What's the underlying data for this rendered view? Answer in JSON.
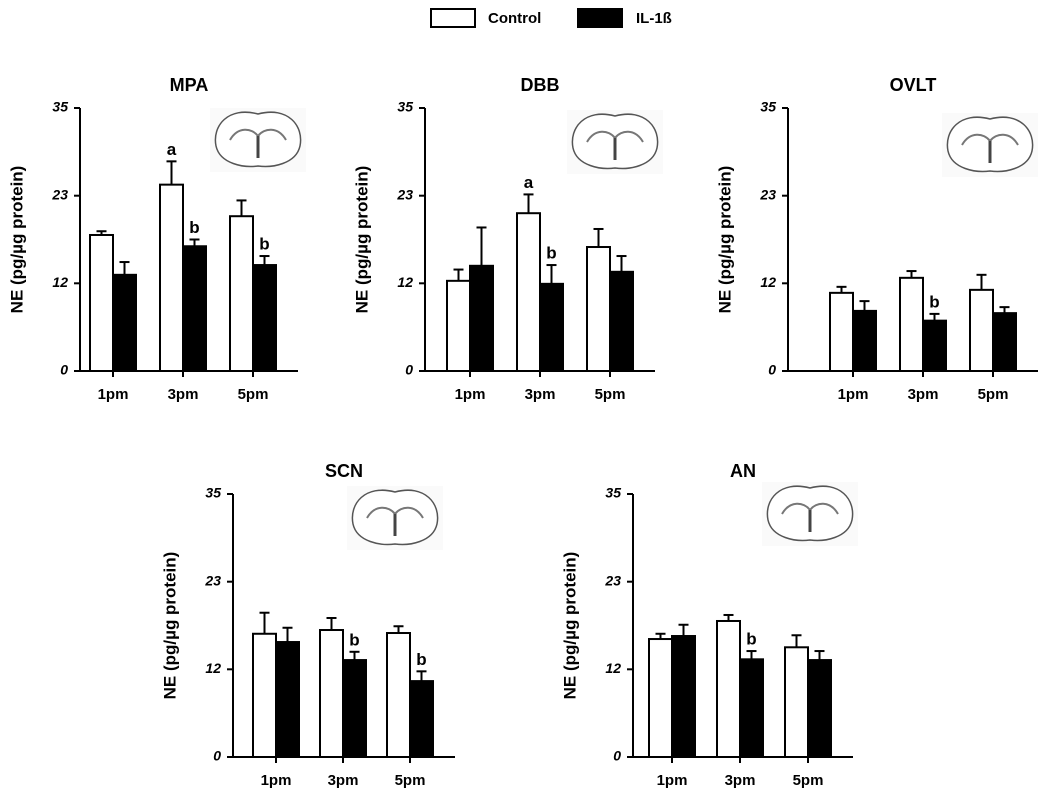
{
  "chart_data": [
    {
      "type": "bar",
      "title": "MPA",
      "ylabel": "NE (pg/µg protein)",
      "categories": [
        "1pm",
        "3pm",
        "5pm"
      ],
      "series": [
        {
          "name": "Control",
          "color": "#ffffff",
          "values": [
            18.1,
            24.8,
            20.6
          ],
          "errors": [
            0.5,
            3.1,
            2.1
          ],
          "annotations": [
            null,
            "a",
            null
          ]
        },
        {
          "name": "IL-1ß",
          "color": "#000000",
          "values": [
            12.8,
            16.6,
            14.1
          ],
          "errors": [
            1.7,
            0.9,
            1.2
          ],
          "annotations": [
            null,
            "b",
            "b"
          ]
        }
      ],
      "ylim": [
        0,
        35
      ],
      "yticks": [
        0,
        {
          "value": 11.67,
          "label": "12"
        },
        {
          "value": 23.33,
          "label": "23"
        },
        35
      ]
    },
    {
      "type": "bar",
      "title": "DBB",
      "ylabel": "NE (pg/µg protein)",
      "categories": [
        "1pm",
        "3pm",
        "5pm"
      ],
      "series": [
        {
          "color": "#ffffff",
          "values": [
            12.0,
            21.0,
            16.5
          ],
          "errors": [
            1.5,
            2.5,
            2.4
          ],
          "annotations": [
            null,
            "a",
            null
          ]
        },
        {
          "color": "#000000",
          "values": [
            14.0,
            11.6,
            13.2
          ],
          "errors": [
            5.1,
            2.5,
            2.1
          ],
          "annotations": [
            null,
            "b",
            null
          ]
        }
      ],
      "ylim": [
        0,
        35
      ],
      "yticks": [
        0,
        {
          "value": 11.67,
          "label": "12"
        },
        {
          "value": 23.33,
          "label": "23"
        },
        35
      ]
    },
    {
      "type": "bar",
      "title": "OVLT",
      "ylabel": "NE (pg/µg protein)",
      "categories": [
        "1pm",
        "3pm",
        "5pm"
      ],
      "series": [
        {
          "color": "#ffffff",
          "values": [
            10.4,
            12.4,
            10.8
          ],
          "errors": [
            0.8,
            0.9,
            2.0
          ],
          "annotations": [
            null,
            null,
            null
          ]
        },
        {
          "color": "#000000",
          "values": [
            8.0,
            6.7,
            7.7
          ],
          "errors": [
            1.3,
            0.9,
            0.8
          ],
          "annotations": [
            null,
            "b",
            null
          ]
        }
      ],
      "ylim": [
        0,
        35
      ],
      "yticks": [
        0,
        {
          "value": 11.67,
          "label": "12"
        },
        {
          "value": 23.33,
          "label": "23"
        },
        35
      ]
    },
    {
      "type": "bar",
      "title": "SCN",
      "ylabel": "NE (pg/µg protein)",
      "categories": [
        "1pm",
        "3pm",
        "5pm"
      ],
      "series": [
        {
          "color": "#ffffff",
          "values": [
            16.4,
            16.9,
            16.5
          ],
          "errors": [
            2.8,
            1.6,
            0.9
          ],
          "annotations": [
            null,
            null,
            null
          ]
        },
        {
          "color": "#000000",
          "values": [
            15.3,
            12.9,
            10.1
          ],
          "errors": [
            1.9,
            1.1,
            1.3
          ],
          "annotations": [
            null,
            "b",
            "b"
          ]
        }
      ],
      "ylim": [
        0,
        35
      ],
      "yticks": [
        0,
        {
          "value": 11.67,
          "label": "12"
        },
        {
          "value": 23.33,
          "label": "23"
        },
        35
      ]
    },
    {
      "type": "bar",
      "title": "AN",
      "ylabel": "NE (pg/µg protein)",
      "categories": [
        "1pm",
        "3pm",
        "5pm"
      ],
      "series": [
        {
          "color": "#ffffff",
          "values": [
            15.7,
            18.1,
            14.6
          ],
          "errors": [
            0.7,
            0.8,
            1.6
          ],
          "annotations": [
            null,
            null,
            null
          ]
        },
        {
          "color": "#000000",
          "values": [
            16.1,
            13.0,
            12.9
          ],
          "errors": [
            1.5,
            1.1,
            1.2
          ],
          "annotations": [
            null,
            "b",
            null
          ]
        }
      ],
      "ylim": [
        0,
        35
      ],
      "yticks": [
        0,
        {
          "value": 11.67,
          "label": "12"
        },
        {
          "value": 23.33,
          "label": "23"
        },
        35
      ]
    }
  ]
}
